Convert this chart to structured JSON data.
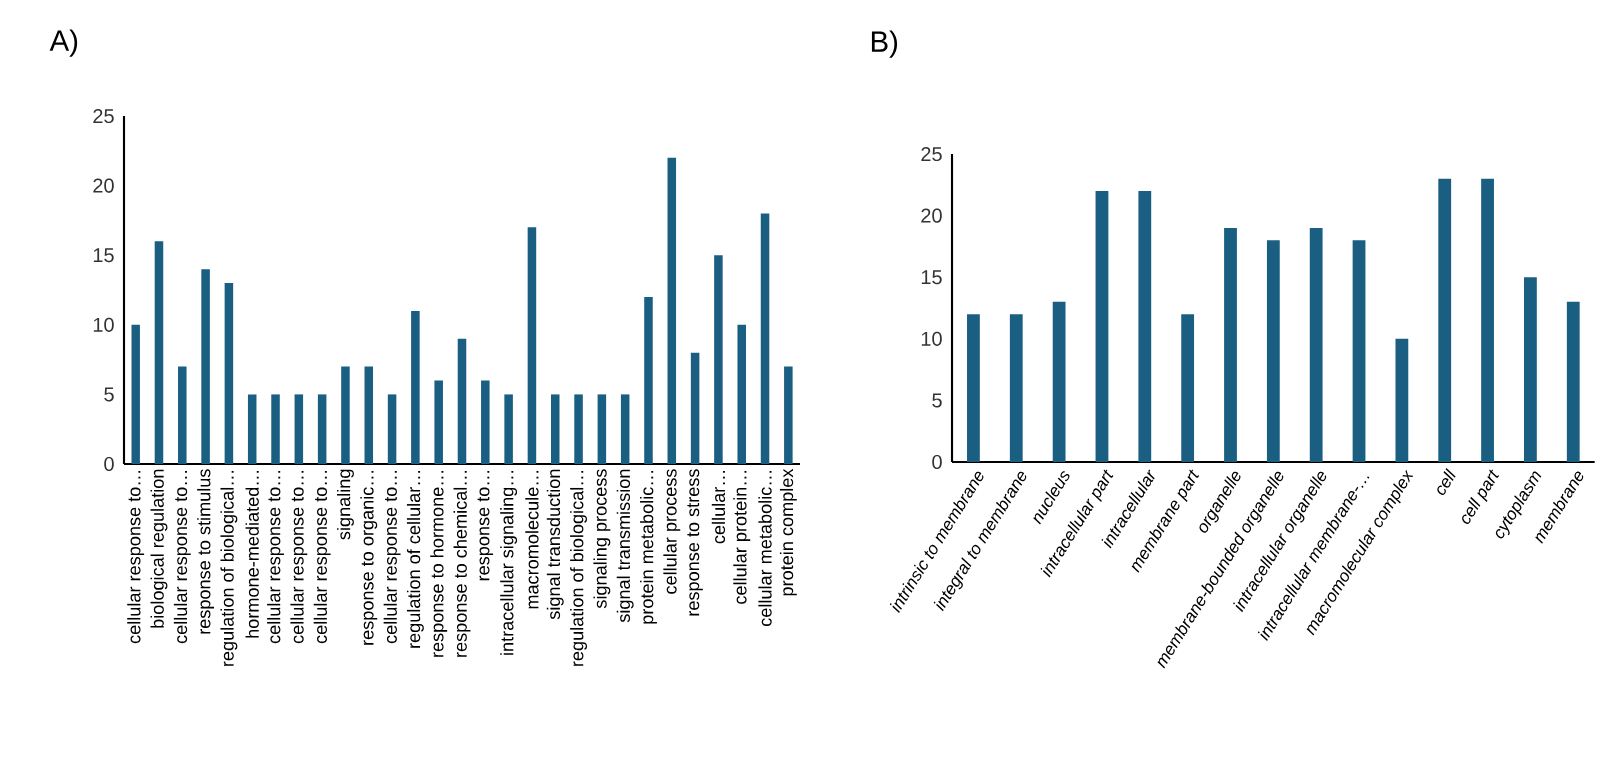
{
  "chart_data": [
    {
      "type": "bar",
      "title": "A)",
      "categories": [
        "cellular response to…",
        "biological regulation",
        "cellular response to…",
        "response to stimulus",
        "regulation of biological…",
        "hormone-mediated…",
        "cellular response to…",
        "cellular response to…",
        "cellular response to…",
        "signaling",
        "response to organic…",
        "cellular response to…",
        "regulation of cellular…",
        "response to hormone…",
        "response to chemical…",
        "response to…",
        "intracellular signaling…",
        "macromolecule…",
        "signal transduction",
        "regulation of biological…",
        "signaling process",
        "signal transmission",
        "protein metabolic…",
        "cellular process",
        "response to stress",
        "cellular…",
        "cellular protein…",
        "cellular metabolic…",
        "protein complex"
      ],
      "values": [
        10,
        16,
        7,
        14,
        13,
        5,
        5,
        5,
        5,
        7,
        7,
        5,
        11,
        6,
        9,
        6,
        5,
        17,
        5,
        5,
        5,
        5,
        12,
        22,
        8,
        15,
        10,
        18,
        7
      ],
      "color": "#1a5f82",
      "ylim": [
        0,
        25
      ],
      "yticks": [
        0,
        5,
        10,
        15,
        20,
        25
      ]
    },
    {
      "type": "bar",
      "title": "B)",
      "categories": [
        "intrinsic to membrane",
        "integral to membrane",
        "nucleus",
        "intracellular part",
        "intracellular",
        "membrane part",
        "organelle",
        "membrane-bounded organelle",
        "intracellular organelle",
        "intracellular membrane-…",
        "macromolecular complex",
        "cell",
        "cell part",
        "cytoplasm",
        "membrane"
      ],
      "values": [
        12,
        12,
        13,
        22,
        22,
        12,
        19,
        18,
        19,
        18,
        10,
        23,
        23,
        15,
        13
      ],
      "color": "#1a5f82",
      "ylim": [
        0,
        25
      ],
      "yticks": [
        0,
        5,
        10,
        15,
        20,
        25
      ]
    }
  ]
}
